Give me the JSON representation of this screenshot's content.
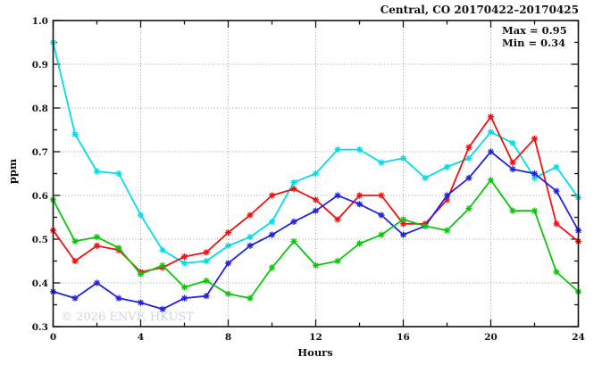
{
  "title": "Central, CO 20170422–2017​0425",
  "stats": {
    "max_label": "Max = 0.95",
    "min_label": "Min = 0.34"
  },
  "watermark": "© 2026 ENVF, HKUST",
  "colors": {
    "frame": "#111111",
    "grid": "#999999",
    "watermark": "#ccd4db",
    "series_cyan": "#00dde6",
    "series_red": "#ee1111",
    "series_blue": "#2222dd",
    "series_green": "#0cc50c"
  },
  "chart_data": {
    "type": "line",
    "title": "Central, CO 20170422–20170425",
    "xlabel": "Hours",
    "ylabel": "ppm",
    "xlim": [
      0,
      24
    ],
    "ylim": [
      0.3,
      1.0
    ],
    "x_ticks_major": [
      0,
      4,
      8,
      12,
      16,
      20,
      24
    ],
    "x_tick_labels": [
      "0",
      "4",
      "8",
      "12",
      "16",
      "20",
      "24"
    ],
    "x_ticks_minor": [
      2,
      6,
      10,
      14,
      18,
      22
    ],
    "y_ticks_major": [
      0.3,
      0.4,
      0.5,
      0.6,
      0.7,
      0.8,
      0.9,
      1.0
    ],
    "y_tick_labels": [
      "0.3",
      "0.4",
      "0.5",
      "0.6",
      "0.7",
      "0.8",
      "0.9",
      "1.0"
    ],
    "y_ticks_minor": [
      0.35,
      0.45,
      0.55,
      0.65,
      0.75,
      0.85,
      0.95
    ],
    "grid": {
      "style": "dotted",
      "x_lines": [
        4,
        8,
        12,
        16,
        20
      ],
      "y_lines": [
        0.4,
        0.5,
        0.6,
        0.7,
        0.8,
        0.9
      ]
    },
    "legend": "none",
    "marker": "asterisk",
    "x": [
      0,
      1,
      2,
      3,
      4,
      5,
      6,
      7,
      8,
      9,
      10,
      11,
      12,
      13,
      14,
      15,
      16,
      17,
      18,
      19,
      20,
      21,
      22,
      23,
      24
    ],
    "series": [
      {
        "name": "cyan",
        "color": "#00dde6",
        "values": [
          0.95,
          0.74,
          0.655,
          0.65,
          0.555,
          0.475,
          0.445,
          0.45,
          0.485,
          0.505,
          0.54,
          0.63,
          0.65,
          0.705,
          0.705,
          0.675,
          0.685,
          0.64,
          0.665,
          0.685,
          0.745,
          0.72,
          0.64,
          0.665,
          0.595
        ]
      },
      {
        "name": "red",
        "color": "#ee1111",
        "values": [
          0.52,
          0.45,
          0.485,
          0.475,
          0.425,
          0.435,
          0.46,
          0.47,
          0.515,
          0.555,
          0.6,
          0.615,
          0.59,
          0.545,
          0.6,
          0.6,
          0.535,
          0.535,
          0.59,
          0.71,
          0.78,
          0.675,
          0.73,
          0.535,
          0.495
        ]
      },
      {
        "name": "blue",
        "color": "#2222dd",
        "values": [
          0.38,
          0.365,
          0.4,
          0.365,
          0.355,
          0.34,
          0.365,
          0.37,
          0.445,
          0.485,
          0.51,
          0.54,
          0.565,
          0.6,
          0.58,
          0.555,
          0.51,
          0.53,
          0.6,
          0.64,
          0.7,
          0.66,
          0.65,
          0.61,
          0.52
        ]
      },
      {
        "name": "green",
        "color": "#0cc50c",
        "values": [
          0.59,
          0.495,
          0.505,
          0.48,
          0.42,
          0.44,
          0.39,
          0.405,
          0.375,
          0.365,
          0.435,
          0.495,
          0.44,
          0.45,
          0.49,
          0.51,
          0.545,
          0.53,
          0.52,
          0.57,
          0.635,
          0.565,
          0.565,
          0.425,
          0.38
        ]
      }
    ],
    "annotations": {
      "max": 0.95,
      "min": 0.34
    }
  }
}
